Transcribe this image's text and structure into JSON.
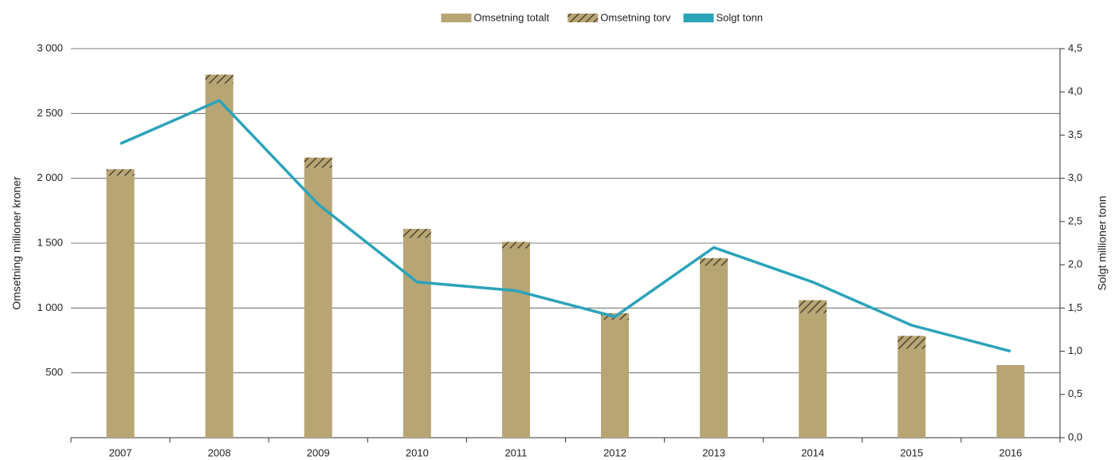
{
  "chart_data": {
    "type": "bar_line",
    "categories": [
      "2007",
      "2008",
      "2009",
      "2010",
      "2011",
      "2012",
      "2013",
      "2014",
      "2015",
      "2016"
    ],
    "series": [
      {
        "name": "Omsetning totalt",
        "type": "bar",
        "color": "#b8a574",
        "values": [
          2020,
          2730,
          2080,
          1540,
          1460,
          910,
          1325,
          960,
          685,
          560
        ]
      },
      {
        "name": "Omsetning torv",
        "type": "bar",
        "color": "#b8a574",
        "hatch": true,
        "values": [
          50,
          70,
          80,
          70,
          50,
          50,
          60,
          100,
          100,
          0
        ]
      },
      {
        "name": "Solgt tonn",
        "type": "line",
        "axis": "y2",
        "color": "#2ba3b9",
        "values": [
          3.4,
          3.9,
          2.7,
          1.8,
          1.7,
          1.4,
          2.2,
          1.8,
          1.3,
          1.0
        ]
      }
    ],
    "ylabel": "Omsetning millioner kroner",
    "y2label": "Solgt millioner tonn",
    "ylim": [
      0,
      3000
    ],
    "yticks": [
      {
        "value": 500,
        "label": "500"
      },
      {
        "value": 1000,
        "label": "1 000"
      },
      {
        "value": 1500,
        "label": "1 500"
      },
      {
        "value": 2000,
        "label": "2 000"
      },
      {
        "value": 2500,
        "label": "2 500"
      },
      {
        "value": 3000,
        "label": "3 000"
      }
    ],
    "y2lim": [
      0,
      4.5
    ],
    "y2ticks": [
      {
        "value": 0,
        "label": "0,0"
      },
      {
        "value": 0.5,
        "label": "0,5"
      },
      {
        "value": 1,
        "label": "1,0"
      },
      {
        "value": 1.5,
        "label": "1,5"
      },
      {
        "value": 2,
        "label": "2,0"
      },
      {
        "value": 2.5,
        "label": "2,5"
      },
      {
        "value": 3,
        "label": "3,0"
      },
      {
        "value": 3.5,
        "label": "3,5"
      },
      {
        "value": 4,
        "label": "4,0"
      },
      {
        "value": 4.5,
        "label": "4,5"
      }
    ],
    "grid": true,
    "legend": "top"
  }
}
